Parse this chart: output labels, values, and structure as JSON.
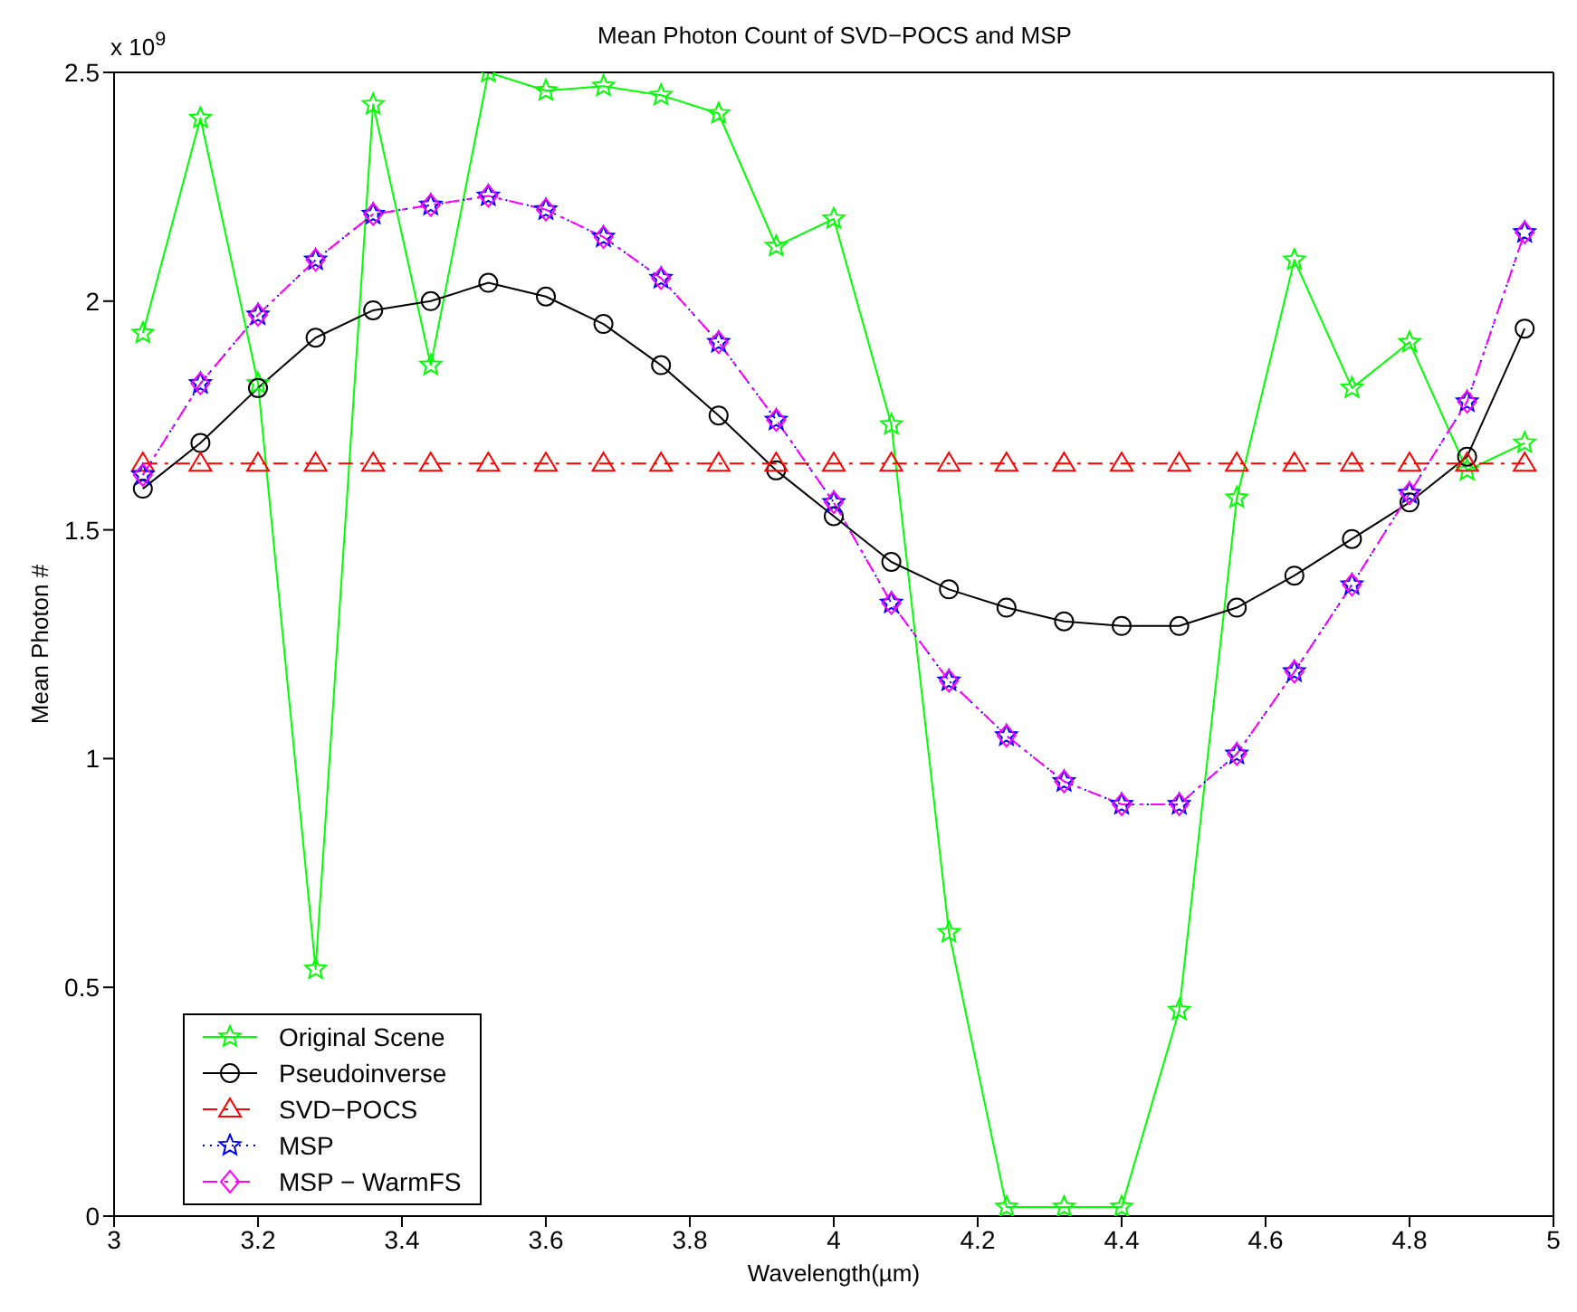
{
  "chart_data": {
    "type": "line",
    "title": "Mean Photon Count of SVD−POCS and MSP",
    "xlabel": "Wavelength(µm)",
    "ylabel": "Mean Photon #",
    "annotations": [
      "x 10$^{9}$"
    ],
    "x": [
      3.04,
      3.12,
      3.2,
      3.28,
      3.36,
      3.44,
      3.52,
      3.6,
      3.68,
      3.76,
      3.84,
      3.92,
      4.0,
      4.08,
      4.16,
      4.24,
      4.32,
      4.4,
      4.48,
      4.56,
      4.64,
      4.72,
      4.8,
      4.88,
      4.96
    ],
    "series": [
      {
        "name": "Original Scene",
        "color": "#00ff00",
        "marker": "star",
        "line_style": "solid",
        "values": [
          1.93,
          2.4,
          1.82,
          0.54,
          2.43,
          1.86,
          2.5,
          2.46,
          2.47,
          2.45,
          2.41,
          2.12,
          2.18,
          1.73,
          0.62,
          0.02,
          0.02,
          0.02,
          0.45,
          1.57,
          2.09,
          1.81,
          1.91,
          1.63,
          1.69
        ]
      },
      {
        "name": "Pseudoinverse",
        "color": "#000000",
        "marker": "circle",
        "line_style": "solid",
        "values": [
          1.59,
          1.69,
          1.81,
          1.92,
          1.98,
          2.0,
          2.04,
          2.01,
          1.95,
          1.86,
          1.75,
          1.63,
          1.53,
          1.43,
          1.37,
          1.33,
          1.3,
          1.29,
          1.29,
          1.33,
          1.4,
          1.48,
          1.56,
          1.66,
          1.94
        ]
      },
      {
        "name": "SVD−POCS",
        "color": "#ff0000",
        "marker": "triangle",
        "line_style": "dashed",
        "values": [
          1.645,
          1.645,
          1.645,
          1.645,
          1.645,
          1.645,
          1.645,
          1.645,
          1.645,
          1.645,
          1.645,
          1.645,
          1.645,
          1.645,
          1.645,
          1.645,
          1.645,
          1.645,
          1.645,
          1.645,
          1.645,
          1.645,
          1.645,
          1.645,
          1.645
        ]
      },
      {
        "name": "MSP",
        "color": "#0000ff",
        "marker": "star",
        "line_style": "dotted",
        "values": [
          1.62,
          1.82,
          1.97,
          2.09,
          2.19,
          2.21,
          2.23,
          2.2,
          2.14,
          2.05,
          1.91,
          1.74,
          1.56,
          1.34,
          1.17,
          1.05,
          0.95,
          0.9,
          0.9,
          1.01,
          1.19,
          1.38,
          1.58,
          1.78,
          2.15
        ]
      },
      {
        "name": "MSP − WarmFS",
        "color": "#ff00ff",
        "marker": "diamond",
        "line_style": "dashed",
        "values": [
          1.62,
          1.82,
          1.97,
          2.09,
          2.19,
          2.21,
          2.23,
          2.2,
          2.14,
          2.05,
          1.91,
          1.74,
          1.56,
          1.34,
          1.17,
          1.05,
          0.95,
          0.9,
          0.9,
          1.01,
          1.19,
          1.38,
          1.58,
          1.78,
          2.15
        ]
      }
    ],
    "xlim": [
      3,
      5
    ],
    "xticks": [
      3,
      3.2,
      3.4,
      3.6,
      3.8,
      4,
      4.2,
      4.4,
      4.6,
      4.8,
      5
    ],
    "ylim": [
      0,
      2.5
    ],
    "yticks": [
      0,
      0.5,
      1,
      1.5,
      2,
      2.5
    ],
    "grid": false,
    "legend": "bottom left"
  }
}
